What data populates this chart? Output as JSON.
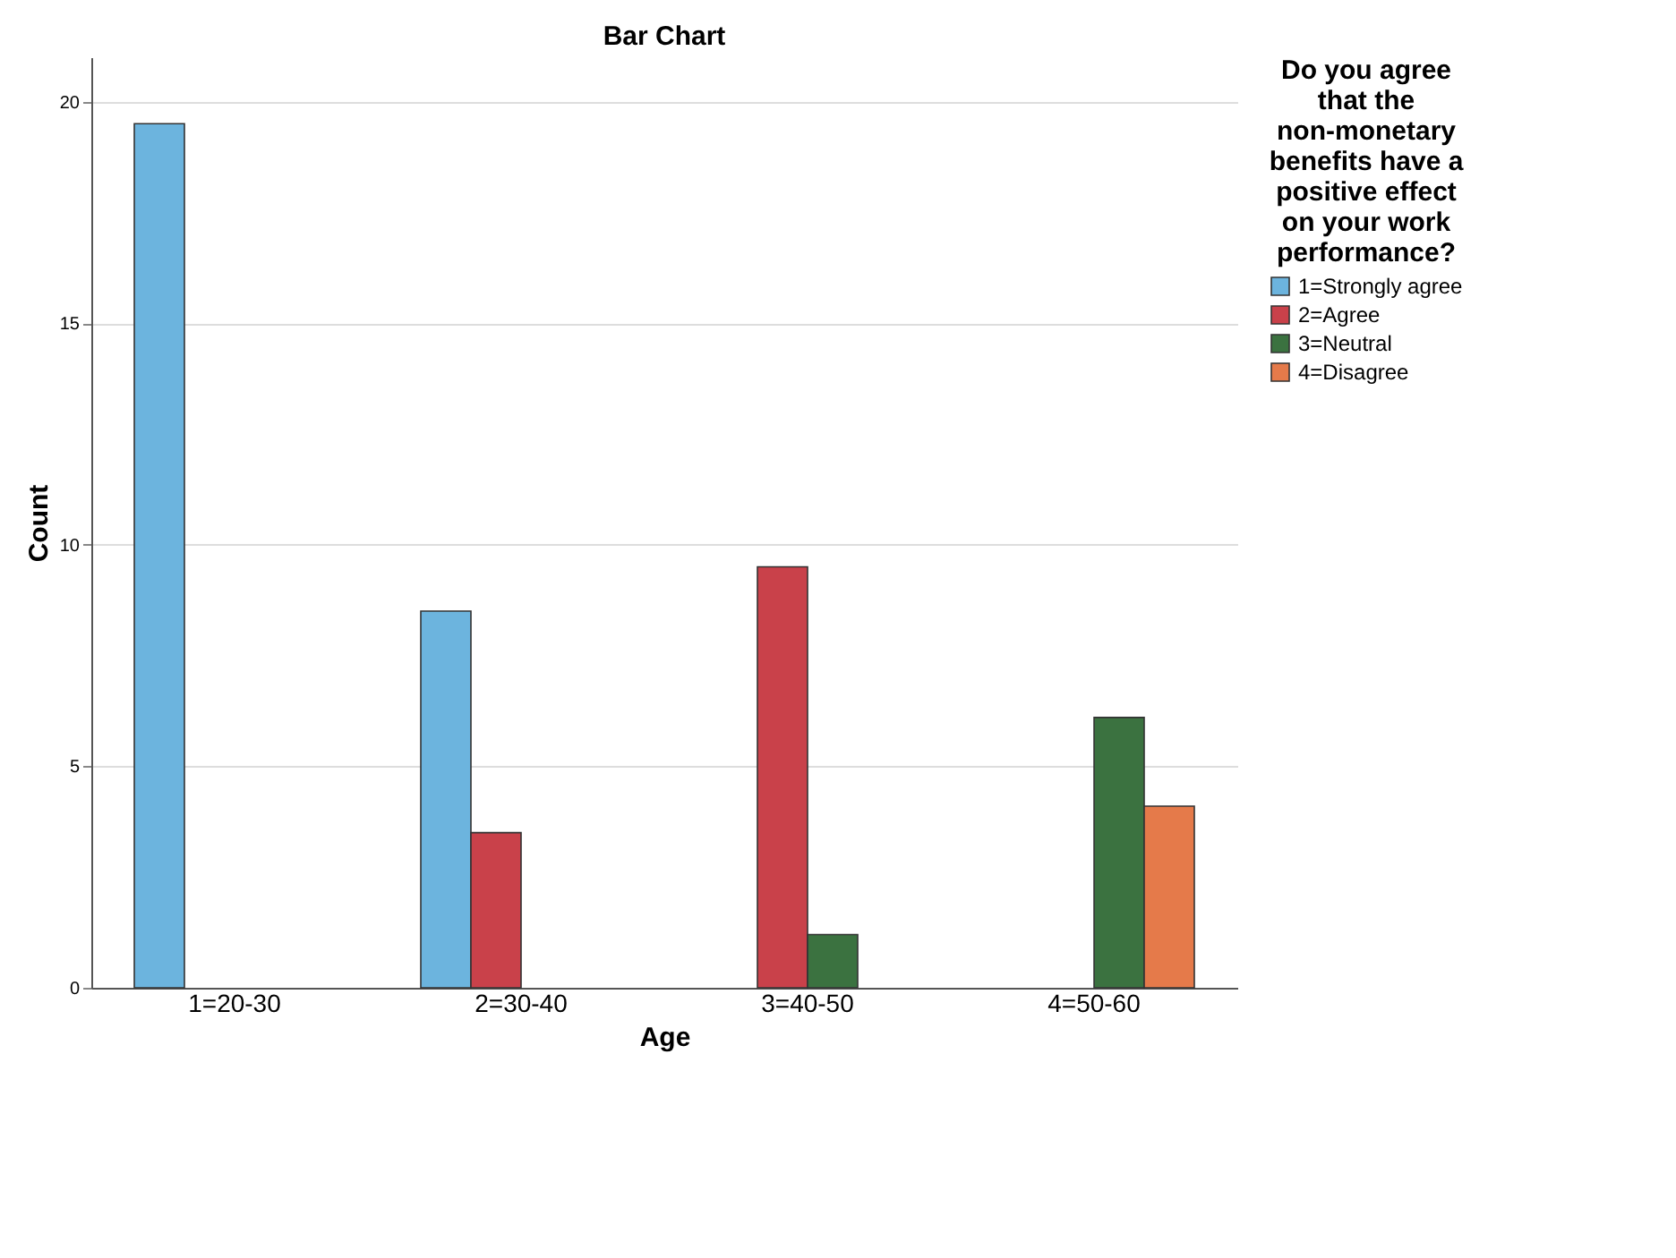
{
  "chart_data": {
    "type": "bar",
    "title": "Bar Chart",
    "xlabel": "Age",
    "ylabel": "Count",
    "legend_title": "Do you agree that the non-monetary benefits have a positive effect on your work performance?",
    "categories": [
      "1=20-30",
      "2=30-40",
      "3=40-50",
      "4=50-60"
    ],
    "series": [
      {
        "name": "1=Strongly agree",
        "color": "#6cb4de",
        "values": [
          19.5,
          8.5,
          null,
          null
        ]
      },
      {
        "name": "2=Agree",
        "color": "#c9414a",
        "values": [
          null,
          3.5,
          9.5,
          null
        ]
      },
      {
        "name": "3=Neutral",
        "color": "#3b7240",
        "values": [
          null,
          null,
          1.2,
          6.1
        ]
      },
      {
        "name": "4=Disagree",
        "color": "#e57a4a",
        "values": [
          null,
          null,
          null,
          4.1
        ]
      }
    ],
    "ylim": [
      0,
      21
    ],
    "yticks": [
      0,
      5,
      10,
      15,
      20
    ],
    "grid": "y",
    "legend": "top right"
  }
}
